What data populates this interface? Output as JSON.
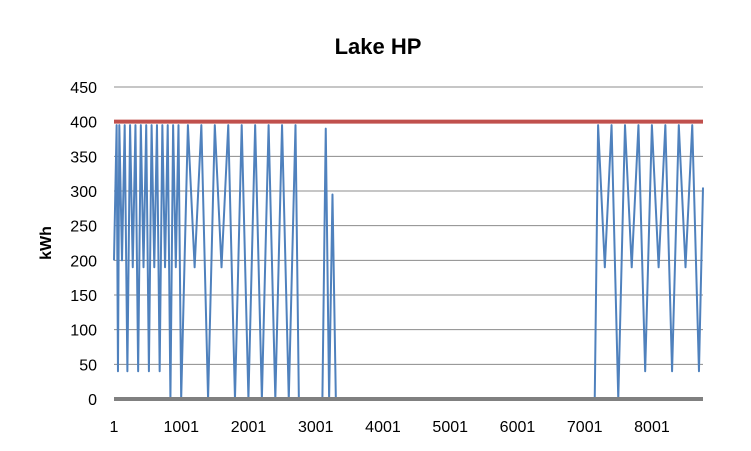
{
  "chart_data": {
    "type": "line",
    "title": "Lake HP",
    "xlabel": "",
    "ylabel": "kWh",
    "xlim": [
      1,
      8760
    ],
    "ylim": [
      0,
      450
    ],
    "y_ticks": [
      0,
      50,
      100,
      150,
      200,
      250,
      300,
      350,
      400,
      450
    ],
    "x_ticks": [
      1,
      1001,
      2001,
      3001,
      4001,
      5001,
      6001,
      7001,
      8001
    ],
    "grid": true,
    "legend": "none",
    "series": [
      {
        "color": "#4F81BD",
        "x": [
          1,
          40,
          60,
          80,
          120,
          160,
          200,
          240,
          280,
          320,
          360,
          400,
          440,
          480,
          520,
          560,
          600,
          640,
          680,
          720,
          760,
          800,
          840,
          880,
          920,
          960,
          1000,
          1100,
          1200,
          1300,
          1400,
          1500,
          1600,
          1700,
          1800,
          1900,
          2000,
          2100,
          2200,
          2300,
          2400,
          2500,
          2600,
          2700,
          2750,
          2800,
          3050,
          3100,
          3150,
          3200,
          3250,
          3300,
          4000,
          5000,
          6000,
          7000,
          7150,
          7200,
          7300,
          7400,
          7500,
          7600,
          7700,
          7800,
          7900,
          8000,
          8100,
          8200,
          8300,
          8400,
          8500,
          8600,
          8700,
          8760
        ],
        "values": [
          200,
          395,
          40,
          395,
          200,
          395,
          40,
          395,
          190,
          395,
          40,
          395,
          190,
          395,
          40,
          395,
          190,
          395,
          40,
          395,
          190,
          395,
          0,
          395,
          190,
          395,
          0,
          395,
          190,
          395,
          0,
          395,
          190,
          395,
          0,
          395,
          0,
          395,
          0,
          395,
          0,
          395,
          0,
          395,
          0,
          0,
          0,
          0,
          390,
          0,
          295,
          0,
          0,
          0,
          0,
          0,
          0,
          395,
          190,
          395,
          0,
          395,
          190,
          395,
          40,
          395,
          190,
          395,
          40,
          395,
          190,
          395,
          40,
          305
        ]
      },
      {
        "color": "#C0504D",
        "x": [
          1,
          8760
        ],
        "values": [
          400,
          400
        ]
      },
      {
        "color": "#808080",
        "x": [
          1,
          8760
        ],
        "values": [
          0,
          0
        ]
      }
    ]
  }
}
